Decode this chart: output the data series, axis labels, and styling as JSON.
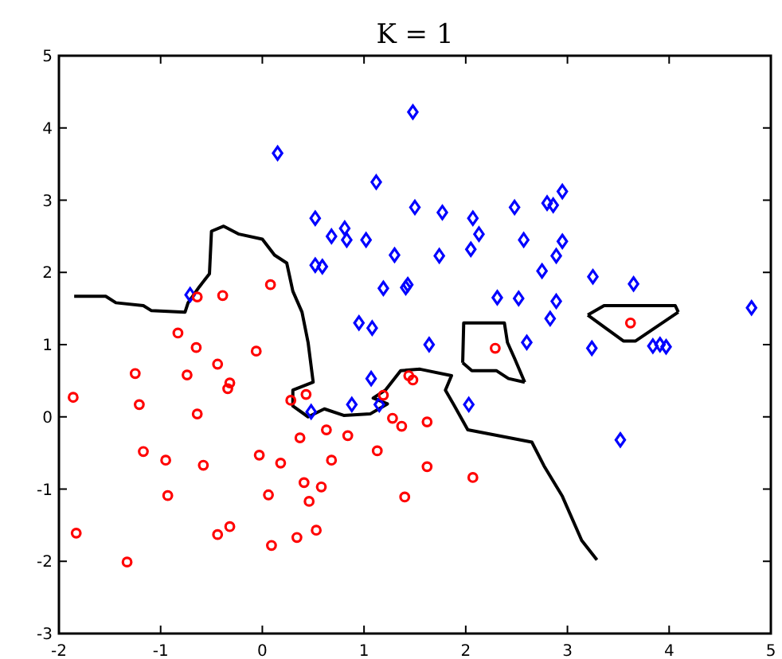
{
  "chart_data": {
    "type": "scatter",
    "title": "K = 1",
    "xlim": [
      -2,
      5
    ],
    "ylim": [
      -3,
      5
    ],
    "xticks": [
      -2,
      -1,
      0,
      1,
      2,
      3,
      4,
      5
    ],
    "yticks": [
      -3,
      -2,
      -1,
      0,
      1,
      2,
      3,
      4,
      5
    ],
    "grid": false,
    "series": [
      {
        "marker": "diamond",
        "color": "#0000ff",
        "x": [
          0.15,
          1.48,
          1.12,
          1.5,
          0.52,
          0.68,
          0.81,
          0.83,
          1.02,
          1.3,
          0.52,
          0.59,
          1.19,
          1.41,
          1.43,
          0.95,
          1.08,
          -0.71,
          1.77,
          2.07,
          2.13,
          2.05,
          1.74,
          2.48,
          2.8,
          2.86,
          2.95,
          2.57,
          2.95,
          2.89,
          2.75,
          3.25,
          3.65,
          2.31,
          2.52,
          2.89,
          2.83,
          4.81,
          1.64,
          2.6,
          3.24,
          3.84,
          3.91,
          3.97,
          2.03,
          3.52,
          1.07,
          0.48,
          0.88,
          1.15
        ],
        "values": [
          3.65,
          4.22,
          3.25,
          2.9,
          2.75,
          2.5,
          2.61,
          2.45,
          2.45,
          2.24,
          2.1,
          2.08,
          1.78,
          1.79,
          1.83,
          1.3,
          1.23,
          1.69,
          2.83,
          2.75,
          2.53,
          2.32,
          2.23,
          2.9,
          2.96,
          2.93,
          3.12,
          2.45,
          2.43,
          2.23,
          2.02,
          1.94,
          1.84,
          1.65,
          1.64,
          1.6,
          1.36,
          1.51,
          1.0,
          1.03,
          0.95,
          0.98,
          1.0,
          0.97,
          0.17,
          -0.32,
          0.53,
          0.07,
          0.17,
          0.17
        ]
      },
      {
        "marker": "circle",
        "color": "#ff0000",
        "x": [
          -0.64,
          -0.39,
          0.08,
          -0.83,
          -0.65,
          -0.06,
          -0.44,
          -1.25,
          -0.74,
          -0.32,
          -0.34,
          -1.86,
          -1.21,
          -0.64,
          0.43,
          0.28,
          1.19,
          1.44,
          1.48,
          1.28,
          1.37,
          0.37,
          0.63,
          0.84,
          1.13,
          -1.17,
          -0.95,
          -0.58,
          -0.03,
          0.18,
          0.68,
          0.41,
          0.58,
          0.46,
          0.06,
          -0.93,
          1.4,
          -1.83,
          -0.44,
          -0.32,
          0.34,
          0.53,
          0.09,
          -1.33,
          2.29,
          1.62,
          1.62,
          2.07,
          3.62
        ],
        "values": [
          1.66,
          1.68,
          1.83,
          1.16,
          0.96,
          0.91,
          0.73,
          0.6,
          0.58,
          0.47,
          0.39,
          0.27,
          0.17,
          0.04,
          0.31,
          0.23,
          0.3,
          0.57,
          0.51,
          -0.02,
          -0.13,
          -0.29,
          -0.18,
          -0.26,
          -0.47,
          -0.48,
          -0.6,
          -0.67,
          -0.53,
          -0.64,
          -0.6,
          -0.91,
          -0.97,
          -1.17,
          -1.08,
          -1.09,
          -1.11,
          -1.61,
          -1.63,
          -1.52,
          -1.67,
          -1.57,
          -1.78,
          -2.01,
          0.95,
          -0.07,
          -0.69,
          -0.84,
          1.3
        ]
      },
      {
        "type": "line",
        "color": "#000000",
        "x": [
          -1.85,
          -1.54,
          -1.44,
          -1.17,
          -1.09,
          -0.76,
          -0.73,
          -0.62,
          -0.52,
          -0.5,
          -0.38,
          -0.23,
          0.0,
          0.12,
          0.24,
          0.3,
          0.39,
          0.45,
          0.5,
          0.3,
          0.3,
          0.45,
          0.61,
          0.8,
          1.06,
          1.23,
          1.09,
          1.21,
          1.36,
          1.55,
          1.86,
          1.8,
          1.89,
          2.02,
          2.65,
          2.77,
          2.95,
          3.14,
          3.29
        ],
        "values": [
          1.67,
          1.67,
          1.58,
          1.54,
          1.47,
          1.45,
          1.58,
          1.8,
          1.98,
          2.57,
          2.64,
          2.53,
          2.46,
          2.24,
          2.13,
          1.74,
          1.45,
          1.03,
          0.48,
          0.37,
          0.15,
          0.0,
          0.11,
          0.02,
          0.04,
          0.18,
          0.26,
          0.37,
          0.64,
          0.66,
          0.57,
          0.37,
          0.15,
          -0.18,
          -0.35,
          -0.68,
          -1.1,
          -1.71,
          -1.98
        ]
      },
      {
        "type": "line",
        "color": "#000000",
        "x": [
          1.97,
          1.98,
          2.38,
          2.41,
          2.48,
          2.58
        ],
        "values": [
          0.75,
          1.3,
          1.3,
          1.03,
          0.81,
          0.48
        ]
      },
      {
        "type": "line",
        "color": "#000000",
        "x": [
          1.97,
          2.06,
          2.3,
          2.42,
          2.58
        ],
        "values": [
          0.75,
          0.64,
          0.64,
          0.53,
          0.48
        ]
      },
      {
        "type": "line",
        "color": "#000000",
        "x": [
          3.2,
          3.36,
          4.06,
          4.09
        ],
        "values": [
          1.41,
          1.54,
          1.54,
          1.45
        ]
      },
      {
        "type": "line",
        "color": "#000000",
        "x": [
          3.2,
          3.55,
          3.67,
          4.09
        ],
        "values": [
          1.41,
          1.05,
          1.05,
          1.45
        ]
      }
    ]
  }
}
